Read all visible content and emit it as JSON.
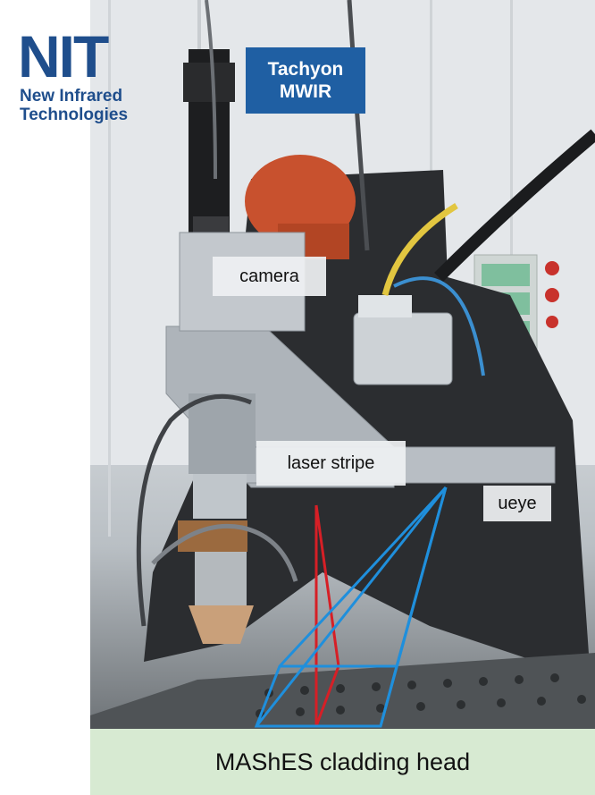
{
  "logo": {
    "mark": "NIT",
    "line1": "New Infrared",
    "line2": "Technologies"
  },
  "labels": {
    "tachyon_line1": "Tachyon",
    "tachyon_line2": "MWIR",
    "camera": "camera",
    "laser_stripe": "laser stripe",
    "ueye": "ueye"
  },
  "caption": "MAShES cladding head",
  "colors": {
    "brand_blue": "#1f4e8c",
    "tag_blue": "#1f5fa3",
    "caption_bg": "#d7ead2",
    "laser_red": "#d61f26",
    "view_blue": "#1f8fdc"
  }
}
